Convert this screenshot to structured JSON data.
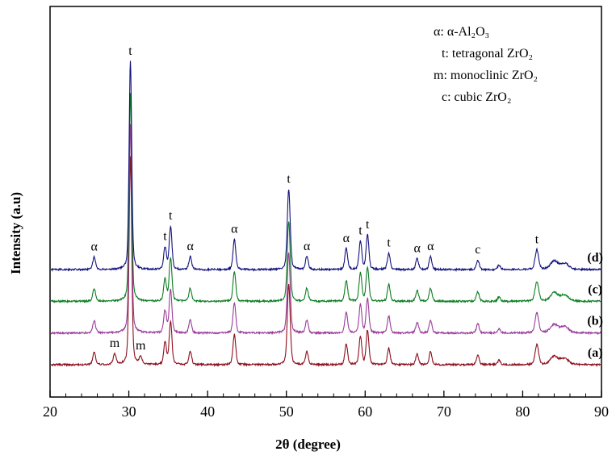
{
  "chart_data": {
    "type": "line",
    "title": "",
    "xlabel": "2θ (degree)",
    "ylabel": "Intensity (a.u)",
    "xlim": [
      20,
      90
    ],
    "x_ticks": [
      20,
      30,
      40,
      50,
      60,
      70,
      80,
      90
    ],
    "x_minor_tick_step": 2,
    "grid": false,
    "y_axis_note": "arbitrary units, traces stacked with vertical offsets, (a) bottom to (d) top",
    "legend": {
      "position": "top-right",
      "entries": [
        "α: α-Al₂O₃",
        "t: tetragonal ZrO₂",
        "m: monoclinic ZrO₂",
        "c: cubic ZrO₂"
      ]
    },
    "peaks_common": [
      {
        "x": 25.6,
        "h": 0.06,
        "phase": "α"
      },
      {
        "x": 30.2,
        "h": 1.0,
        "phase": "t",
        "w": 0.16
      },
      {
        "x": 34.6,
        "h": 0.105,
        "phase": "t"
      },
      {
        "x": 35.3,
        "h": 0.205,
        "phase": "t"
      },
      {
        "x": 37.8,
        "h": 0.062,
        "phase": "α"
      },
      {
        "x": 43.4,
        "h": 0.145,
        "phase": "α"
      },
      {
        "x": 50.3,
        "h": 0.385,
        "phase": "t",
        "w": 0.18
      },
      {
        "x": 52.6,
        "h": 0.062,
        "phase": "α"
      },
      {
        "x": 57.6,
        "h": 0.1,
        "phase": "α"
      },
      {
        "x": 59.4,
        "h": 0.135,
        "phase": "t"
      },
      {
        "x": 60.3,
        "h": 0.165,
        "phase": "t"
      },
      {
        "x": 63.0,
        "h": 0.08,
        "phase": "t"
      },
      {
        "x": 66.6,
        "h": 0.052,
        "phase": "α"
      },
      {
        "x": 68.3,
        "h": 0.062,
        "phase": "α"
      },
      {
        "x": 74.3,
        "h": 0.046,
        "phase": "c"
      },
      {
        "x": 77.0,
        "h": 0.022,
        "phase": ""
      },
      {
        "x": 81.8,
        "h": 0.095,
        "phase": "t",
        "w": 0.22
      },
      {
        "x": 84.0,
        "h": 0.04,
        "phase": "",
        "w": 0.45
      },
      {
        "x": 85.3,
        "h": 0.03,
        "phase": "",
        "w": 0.5
      }
    ],
    "series": [
      {
        "name": "(a)",
        "color": "#8b0f1c",
        "extra_peaks": [
          {
            "x": 28.2,
            "h": 0.05,
            "phase": "m"
          },
          {
            "x": 31.5,
            "h": 0.034,
            "phase": "m"
          }
        ]
      },
      {
        "name": "(b)",
        "color": "#993b99"
      },
      {
        "name": "(c)",
        "color": "#0c7d22"
      },
      {
        "name": "(d)",
        "color": "#12127e"
      }
    ]
  }
}
